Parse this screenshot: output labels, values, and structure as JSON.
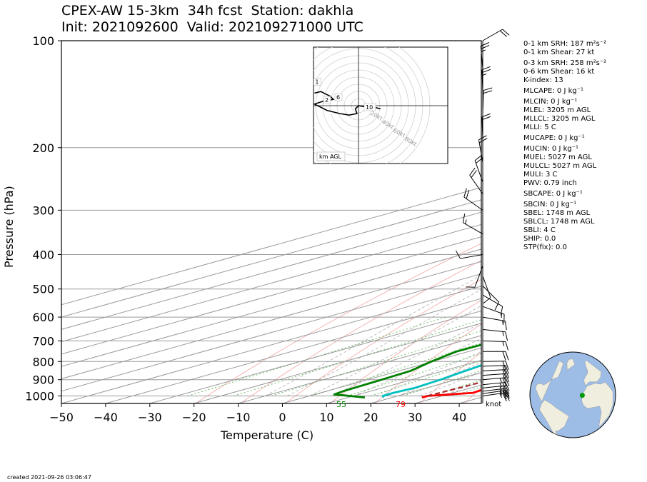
{
  "title": {
    "line1": "CPEX-AW 15-3km  34h fcst  Station: dakhla",
    "line2": "Init: 2021092600  Valid: 202109271000 UTC"
  },
  "created": "created 2021-09-26 03:06:47",
  "stats": [
    "0-1 km SRH: 187 m²s⁻²",
    "0-1 km Shear: 27 kt",
    "0-3 km SRH: 258 m²s⁻²",
    "0-6 km Shear: 16 kt",
    "K-index: 13",
    "MLCAPE: 0 J kg⁻¹",
    "MLCIN: 0 J kg⁻¹",
    "MLEL: 3205 m AGL",
    "MLLCL: 3205 m AGL",
    "MLLI: 5 C",
    "MUCAPE: 0 J kg⁻¹",
    "MUCIN: 0 J kg⁻¹",
    "MUEL: 5027 m AGL",
    "MULCL: 5027 m AGL",
    "MULI: 3 C",
    "PWV: 0.79 inch",
    "SBCAPE: 0 J kg⁻¹",
    "SBCIN: 0 J kg⁻¹",
    "SBEL: 1748 m AGL",
    "SBLCL: 1748 m AGL",
    "SBLI: 4 C",
    "SHIP: 0.0",
    "STP(fix): 0.0"
  ],
  "chart_data": {
    "type": "skew-t",
    "xlabel": "Temperature (C)",
    "ylabel": "Pressure (hPa)",
    "xlim": [
      -50,
      45
    ],
    "ylim": [
      1050,
      100
    ],
    "y_log_scale": true,
    "skew_deg_per_log": 125,
    "x_ticks": [
      -50,
      -40,
      -30,
      -20,
      -10,
      0,
      10,
      20,
      30,
      40
    ],
    "p_ticks": [
      1000,
      900,
      800,
      700,
      600,
      500,
      400,
      300,
      200,
      100
    ],
    "wind_units": "knot",
    "surface_labels": {
      "dewpoint": "55",
      "temperature": "79"
    },
    "series": [
      {
        "name": "temperature",
        "color": "#ff0000",
        "points": [
          [
            1010,
            26.7
          ],
          [
            1000,
            26.7
          ],
          [
            980,
            34.5
          ],
          [
            950,
            34.0
          ],
          [
            900,
            31.0
          ],
          [
            850,
            27.0
          ],
          [
            800,
            22.5
          ],
          [
            700,
            14.3
          ],
          [
            600,
            6.5
          ],
          [
            560,
            5.3
          ],
          [
            520,
            6.2
          ],
          [
            480,
            5.0
          ],
          [
            440,
            3.2
          ],
          [
            420,
            1.6
          ],
          [
            390,
            0.4
          ],
          [
            360,
            -0.8
          ],
          [
            320,
            -5.0
          ],
          [
            280,
            -10.5
          ],
          [
            240,
            -16.5
          ],
          [
            200,
            -23.0
          ],
          [
            170,
            -27.5
          ],
          [
            150,
            -31.0
          ],
          [
            130,
            -34.0
          ],
          [
            115,
            -35.2
          ],
          [
            100,
            -34.0
          ]
        ]
      },
      {
        "name": "dewpoint",
        "color": "#00c0c0",
        "points": [
          [
            1010,
            18.1
          ],
          [
            1000,
            16.6
          ],
          [
            980,
            16.5
          ],
          [
            950,
            17.3
          ],
          [
            900,
            16.5
          ],
          [
            850,
            15.0
          ],
          [
            800,
            13.5
          ],
          [
            700,
            8.5
          ],
          [
            600,
            3.5
          ],
          [
            560,
            1.2
          ],
          [
            520,
            -0.6
          ],
          [
            480,
            -1.9
          ],
          [
            440,
            -3.2
          ],
          [
            400,
            -5.0
          ],
          [
            360,
            -9.0
          ],
          [
            320,
            -13.0
          ],
          [
            280,
            -18.5
          ],
          [
            240,
            -25.5
          ],
          [
            200,
            -30.5
          ],
          [
            170,
            -33.5
          ],
          [
            150,
            -35.5
          ],
          [
            130,
            -37.5
          ],
          [
            115,
            -37.8
          ],
          [
            100,
            -35.5
          ]
        ]
      },
      {
        "name": "wet-bulb",
        "color": "#008000",
        "points": [
          [
            1010,
            13.8
          ],
          [
            990,
            4.4
          ],
          [
            970,
            3.8
          ],
          [
            900,
            3.2
          ],
          [
            850,
            2.6
          ],
          [
            800,
            -0.3
          ],
          [
            750,
            -2.7
          ],
          [
            700,
            -2.5
          ],
          [
            650,
            -1.1
          ],
          [
            600,
            0.8
          ],
          [
            570,
            0.6
          ],
          [
            520,
            -7.4
          ],
          [
            500,
            -11.0
          ],
          [
            470,
            -10.7
          ],
          [
            450,
            -4.0
          ],
          [
            420,
            -6.4
          ],
          [
            380,
            -34.0
          ],
          [
            350,
            -52.0
          ],
          [
            320,
            -55.0
          ],
          [
            280,
            -58.0
          ],
          [
            250,
            -62.0
          ],
          [
            220,
            -67.0
          ],
          [
            190,
            -68.5
          ],
          [
            160,
            -73.5
          ],
          [
            130,
            -80.5
          ],
          [
            100,
            -85.0
          ]
        ]
      },
      {
        "name": "parcel",
        "color": "#a52a2a",
        "dashed": true,
        "points": [
          [
            1000,
            26.7
          ],
          [
            900,
            28.0
          ],
          [
            800,
            23.0
          ],
          [
            700,
            15.0
          ],
          [
            600,
            7.0
          ],
          [
            560,
            4.0
          ],
          [
            500,
            -7.5
          ],
          [
            400,
            -27.5
          ],
          [
            300,
            -53.0
          ],
          [
            200,
            -89.0
          ],
          [
            130,
            -124.0
          ]
        ]
      }
    ],
    "dry_adiabat_thetas": [
      250,
      260,
      270,
      280,
      290,
      300,
      310,
      320,
      330,
      340,
      350,
      360,
      370,
      380,
      390,
      400,
      410,
      420,
      430,
      440,
      450,
      460,
      470,
      480
    ],
    "moist_adiabat_starts": [
      -10,
      -5,
      0,
      5,
      10,
      15,
      20,
      25,
      30
    ],
    "mixing_ratios": [
      0.4,
      1,
      2,
      4,
      7,
      10,
      16,
      24,
      32
    ],
    "isotherms": [
      -130,
      -120,
      -110,
      -100,
      -90,
      -80,
      -70,
      -60,
      -50,
      -40,
      -30,
      -20,
      -10,
      0,
      10,
      20,
      30,
      40
    ],
    "wind_barbs": [
      {
        "p": 1000,
        "dir": 82,
        "spd": 27
      },
      {
        "p": 985,
        "dir": 82,
        "spd": 26
      },
      {
        "p": 970,
        "dir": 83,
        "spd": 26
      },
      {
        "p": 950,
        "dir": 84,
        "spd": 25
      },
      {
        "p": 930,
        "dir": 84,
        "spd": 24
      },
      {
        "p": 900,
        "dir": 85,
        "spd": 23
      },
      {
        "p": 875,
        "dir": 86,
        "spd": 22
      },
      {
        "p": 850,
        "dir": 87,
        "spd": 20
      },
      {
        "p": 825,
        "dir": 88,
        "spd": 19
      },
      {
        "p": 800,
        "dir": 89,
        "spd": 18
      },
      {
        "p": 750,
        "dir": 90,
        "spd": 18
      },
      {
        "p": 700,
        "dir": 92,
        "spd": 17
      },
      {
        "p": 650,
        "dir": 96,
        "spd": 15
      },
      {
        "p": 600,
        "dir": 100,
        "spd": 14
      },
      {
        "p": 560,
        "dir": 110,
        "spd": 13
      },
      {
        "p": 520,
        "dir": 120,
        "spd": 12
      },
      {
        "p": 490,
        "dir": 135,
        "spd": 12
      },
      {
        "p": 460,
        "dir": 160,
        "spd": 10
      },
      {
        "p": 430,
        "dir": 200,
        "spd": 8
      },
      {
        "p": 400,
        "dir": 260,
        "spd": 8
      },
      {
        "p": 350,
        "dir": 300,
        "spd": 14
      },
      {
        "p": 300,
        "dir": 305,
        "spd": 18
      },
      {
        "p": 270,
        "dir": 325,
        "spd": 20
      },
      {
        "p": 250,
        "dir": 340,
        "spd": 22
      },
      {
        "p": 220,
        "dir": 350,
        "spd": 20
      },
      {
        "p": 190,
        "dir": 358,
        "spd": 18
      },
      {
        "p": 160,
        "dir": 2,
        "spd": 22
      },
      {
        "p": 140,
        "dir": 358,
        "spd": 25
      },
      {
        "p": 120,
        "dir": 355,
        "spd": 25
      },
      {
        "p": 100,
        "dir": 60,
        "spd": 20
      }
    ],
    "hodograph": {
      "ring_labels": [
        "20kt",
        "40kt",
        "60kt",
        "80kt"
      ],
      "height_labels": [
        "1",
        "2",
        "6",
        "10"
      ],
      "box_label": "km AGL",
      "trace": [
        [
          -28,
          -8
        ],
        [
          -24,
          -9
        ],
        [
          -18,
          -6
        ],
        [
          -16,
          -4
        ],
        [
          -22,
          -3
        ],
        [
          -28,
          -1
        ],
        [
          -20,
          3
        ],
        [
          -12,
          5
        ],
        [
          -6,
          6
        ],
        [
          -1,
          5
        ],
        [
          -2,
          2
        ],
        [
          0,
          0
        ],
        [
          6,
          1
        ],
        [
          10,
          1
        ],
        [
          14,
          2
        ]
      ]
    },
    "globe": {
      "lat": 23.7,
      "lon": -15.9,
      "center_lat": 25,
      "center_lon": -30
    }
  }
}
